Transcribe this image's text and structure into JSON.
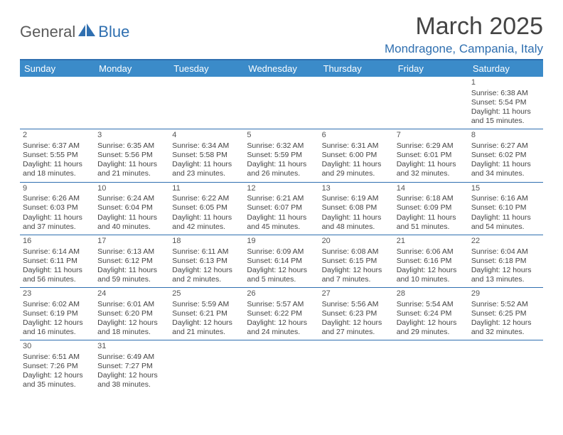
{
  "logo": {
    "part1": "General",
    "part2": "Blue"
  },
  "title": "March 2025",
  "location": "Mondragone, Campania, Italy",
  "colors": {
    "header_bg": "#3b8bc9",
    "accent": "#2f6fb0",
    "text": "#444444",
    "logo_gray": "#5a5a5a"
  },
  "day_names": [
    "Sunday",
    "Monday",
    "Tuesday",
    "Wednesday",
    "Thursday",
    "Friday",
    "Saturday"
  ],
  "weeks": [
    [
      null,
      null,
      null,
      null,
      null,
      null,
      {
        "n": "1",
        "sunrise": "6:38 AM",
        "sunset": "5:54 PM",
        "daylight": "11 hours and 15 minutes."
      }
    ],
    [
      {
        "n": "2",
        "sunrise": "6:37 AM",
        "sunset": "5:55 PM",
        "daylight": "11 hours and 18 minutes."
      },
      {
        "n": "3",
        "sunrise": "6:35 AM",
        "sunset": "5:56 PM",
        "daylight": "11 hours and 21 minutes."
      },
      {
        "n": "4",
        "sunrise": "6:34 AM",
        "sunset": "5:58 PM",
        "daylight": "11 hours and 23 minutes."
      },
      {
        "n": "5",
        "sunrise": "6:32 AM",
        "sunset": "5:59 PM",
        "daylight": "11 hours and 26 minutes."
      },
      {
        "n": "6",
        "sunrise": "6:31 AM",
        "sunset": "6:00 PM",
        "daylight": "11 hours and 29 minutes."
      },
      {
        "n": "7",
        "sunrise": "6:29 AM",
        "sunset": "6:01 PM",
        "daylight": "11 hours and 32 minutes."
      },
      {
        "n": "8",
        "sunrise": "6:27 AM",
        "sunset": "6:02 PM",
        "daylight": "11 hours and 34 minutes."
      }
    ],
    [
      {
        "n": "9",
        "sunrise": "6:26 AM",
        "sunset": "6:03 PM",
        "daylight": "11 hours and 37 minutes."
      },
      {
        "n": "10",
        "sunrise": "6:24 AM",
        "sunset": "6:04 PM",
        "daylight": "11 hours and 40 minutes."
      },
      {
        "n": "11",
        "sunrise": "6:22 AM",
        "sunset": "6:05 PM",
        "daylight": "11 hours and 42 minutes."
      },
      {
        "n": "12",
        "sunrise": "6:21 AM",
        "sunset": "6:07 PM",
        "daylight": "11 hours and 45 minutes."
      },
      {
        "n": "13",
        "sunrise": "6:19 AM",
        "sunset": "6:08 PM",
        "daylight": "11 hours and 48 minutes."
      },
      {
        "n": "14",
        "sunrise": "6:18 AM",
        "sunset": "6:09 PM",
        "daylight": "11 hours and 51 minutes."
      },
      {
        "n": "15",
        "sunrise": "6:16 AM",
        "sunset": "6:10 PM",
        "daylight": "11 hours and 54 minutes."
      }
    ],
    [
      {
        "n": "16",
        "sunrise": "6:14 AM",
        "sunset": "6:11 PM",
        "daylight": "11 hours and 56 minutes."
      },
      {
        "n": "17",
        "sunrise": "6:13 AM",
        "sunset": "6:12 PM",
        "daylight": "11 hours and 59 minutes."
      },
      {
        "n": "18",
        "sunrise": "6:11 AM",
        "sunset": "6:13 PM",
        "daylight": "12 hours and 2 minutes."
      },
      {
        "n": "19",
        "sunrise": "6:09 AM",
        "sunset": "6:14 PM",
        "daylight": "12 hours and 5 minutes."
      },
      {
        "n": "20",
        "sunrise": "6:08 AM",
        "sunset": "6:15 PM",
        "daylight": "12 hours and 7 minutes."
      },
      {
        "n": "21",
        "sunrise": "6:06 AM",
        "sunset": "6:16 PM",
        "daylight": "12 hours and 10 minutes."
      },
      {
        "n": "22",
        "sunrise": "6:04 AM",
        "sunset": "6:18 PM",
        "daylight": "12 hours and 13 minutes."
      }
    ],
    [
      {
        "n": "23",
        "sunrise": "6:02 AM",
        "sunset": "6:19 PM",
        "daylight": "12 hours and 16 minutes."
      },
      {
        "n": "24",
        "sunrise": "6:01 AM",
        "sunset": "6:20 PM",
        "daylight": "12 hours and 18 minutes."
      },
      {
        "n": "25",
        "sunrise": "5:59 AM",
        "sunset": "6:21 PM",
        "daylight": "12 hours and 21 minutes."
      },
      {
        "n": "26",
        "sunrise": "5:57 AM",
        "sunset": "6:22 PM",
        "daylight": "12 hours and 24 minutes."
      },
      {
        "n": "27",
        "sunrise": "5:56 AM",
        "sunset": "6:23 PM",
        "daylight": "12 hours and 27 minutes."
      },
      {
        "n": "28",
        "sunrise": "5:54 AM",
        "sunset": "6:24 PM",
        "daylight": "12 hours and 29 minutes."
      },
      {
        "n": "29",
        "sunrise": "5:52 AM",
        "sunset": "6:25 PM",
        "daylight": "12 hours and 32 minutes."
      }
    ],
    [
      {
        "n": "30",
        "sunrise": "6:51 AM",
        "sunset": "7:26 PM",
        "daylight": "12 hours and 35 minutes."
      },
      {
        "n": "31",
        "sunrise": "6:49 AM",
        "sunset": "7:27 PM",
        "daylight": "12 hours and 38 minutes."
      },
      null,
      null,
      null,
      null,
      null
    ]
  ],
  "labels": {
    "sunrise": "Sunrise: ",
    "sunset": "Sunset: ",
    "daylight": "Daylight: "
  }
}
